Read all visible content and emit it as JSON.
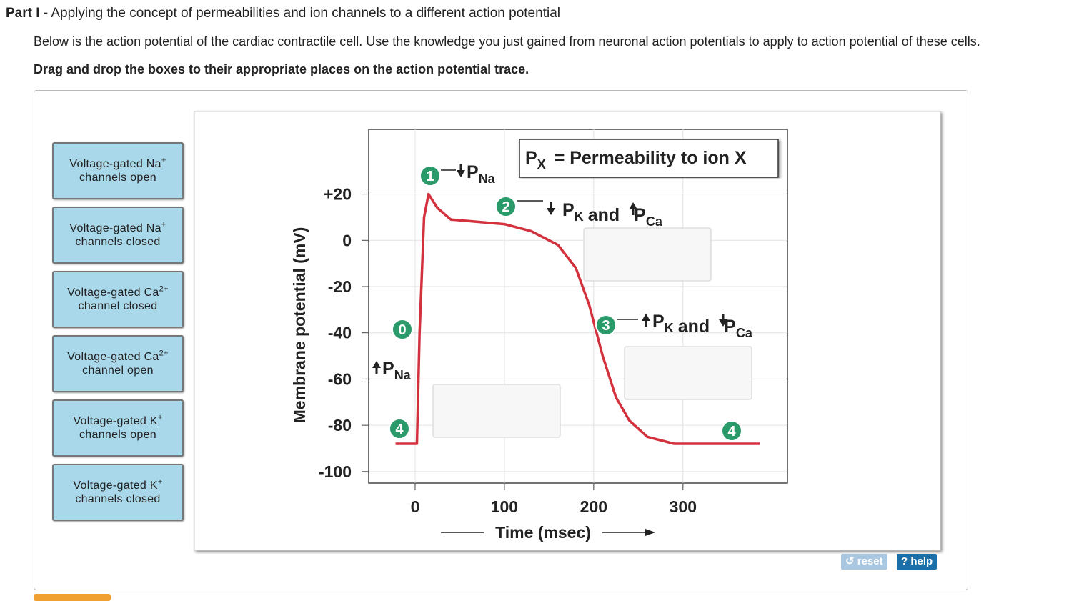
{
  "header": {
    "part": "Part I -",
    "title": "Applying the concept of permeabilities and ion channels to a different action potential"
  },
  "intro": "Below is the action potential of the cardiac contractile cell. Use the knowledge you just gained from neuronal action potentials to apply to action potential of these cells.",
  "instruction": "Drag and drop the boxes to their appropriate places on the action potential trace.",
  "drag_items": [
    {
      "text": "Voltage-gated Na",
      "sup": "+",
      "line2": "channels open"
    },
    {
      "text": "Voltage-gated Na",
      "sup": "+",
      "line2": "channels closed"
    },
    {
      "text": "Voltage-gated Ca",
      "sup": "2+",
      "line2": "channel closed"
    },
    {
      "text": "Voltage-gated Ca",
      "sup": "2+",
      "line2": "channel open"
    },
    {
      "text": "Voltage-gated K",
      "sup": "+",
      "line2": "channels open"
    },
    {
      "text": "Voltage-gated K",
      "sup": "+",
      "line2": "channels closed"
    }
  ],
  "buttons": {
    "reset": "reset",
    "help": "help"
  },
  "chart_data": {
    "type": "line",
    "ylabel": "Membrane potential (mV)",
    "xlabel": "Time (msec)",
    "x": [
      -22,
      2,
      5,
      10,
      15,
      25,
      40,
      70,
      100,
      130,
      160,
      180,
      195,
      210,
      225,
      240,
      260,
      290,
      330,
      386
    ],
    "values": [
      -88,
      -88,
      -40,
      10,
      20,
      14,
      9,
      8,
      7,
      4,
      -2,
      -12,
      -28,
      -50,
      -68,
      -78,
      -85,
      -88,
      -88,
      -88
    ],
    "color": "#d2313d",
    "xlim": [
      -52,
      417
    ],
    "ylim": [
      -105,
      48
    ],
    "xticks": [
      0,
      100,
      200,
      300
    ],
    "yticks": [
      {
        "value": 20,
        "label": "+20"
      },
      0,
      -20,
      -40,
      -60,
      -80,
      -100
    ],
    "grid": true,
    "key": {
      "symbol": "P",
      "sub": "X",
      "text": "= Permeability to ion X"
    },
    "markers": [
      "1",
      "2",
      "3",
      "0",
      "4",
      "4"
    ],
    "annotations": [
      [
        {
          "text": "P",
          "sub": "Na"
        }
      ],
      [
        {
          "text": "P",
          "sub": "K"
        },
        {
          "text": "and"
        },
        {
          "text": "P",
          "sub": "Ca"
        }
      ],
      [
        {
          "text": "P",
          "sub": "K"
        },
        {
          "text": "and"
        },
        {
          "text": "P",
          "sub": "Ca"
        }
      ],
      [
        {
          "text": "P",
          "sub": "Na"
        }
      ]
    ]
  }
}
